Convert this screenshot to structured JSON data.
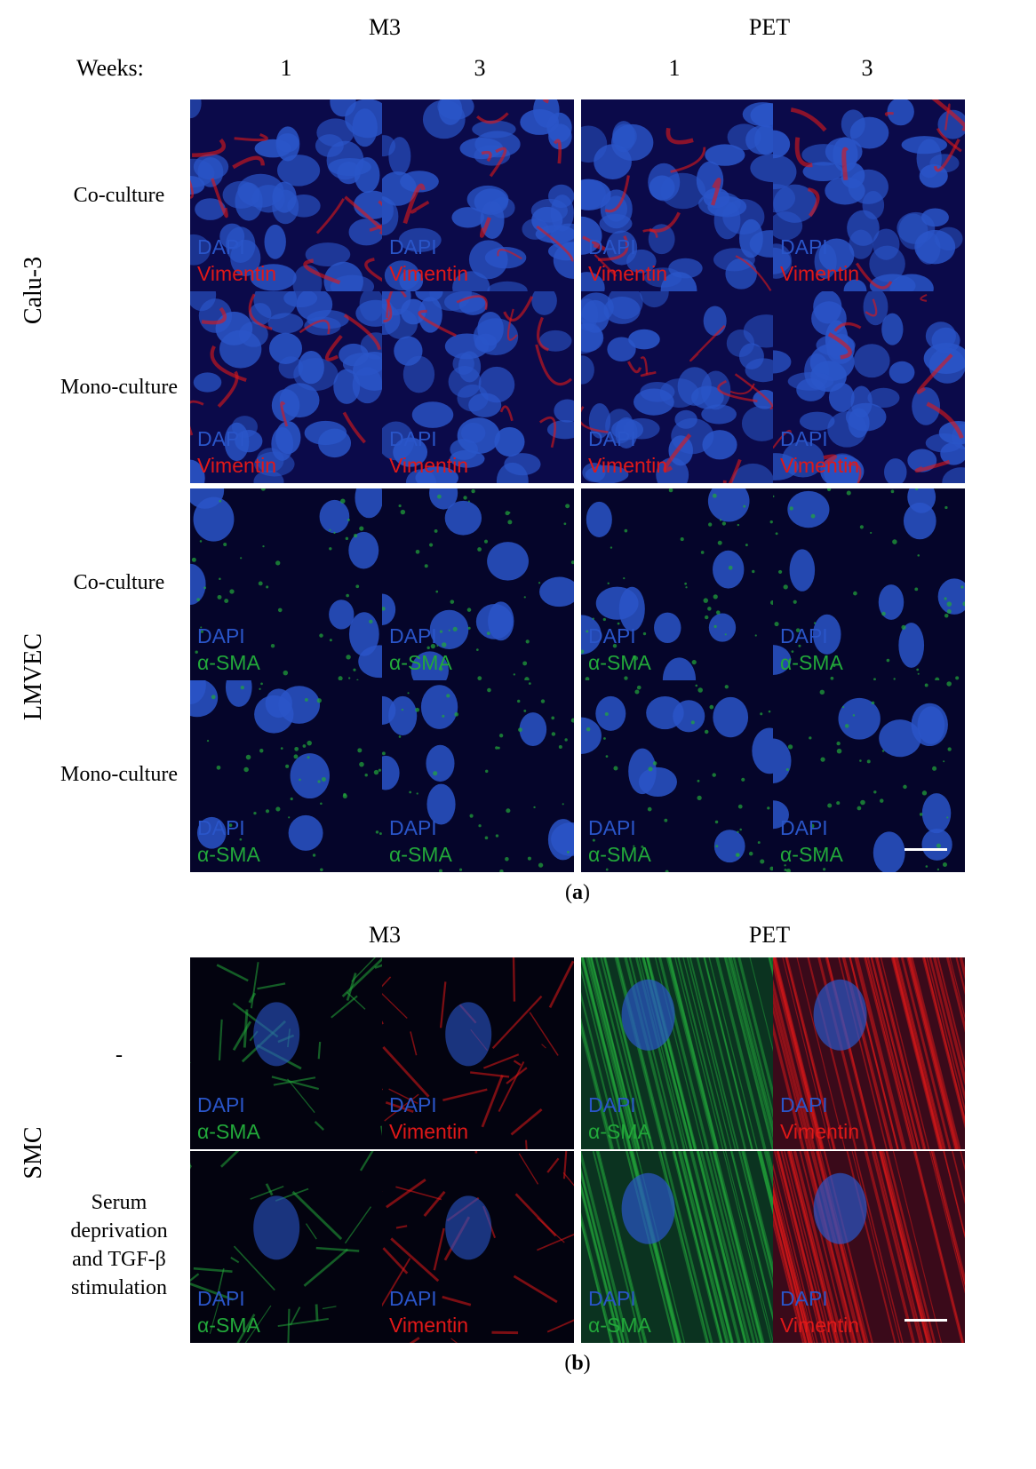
{
  "panel_a": {
    "group_left": "M3",
    "group_right": "PET",
    "weeks_label": "Weeks:",
    "weeks": [
      "1",
      "3",
      "1",
      "3"
    ],
    "cell_lines": [
      "Calu-3",
      "LMVEC"
    ],
    "conditions": [
      "Co-culture",
      "Mono-culture",
      "Co-culture",
      "Mono-culture"
    ],
    "stain_dapi": "DAPI",
    "stain_calu": "Vimentin",
    "stain_lmvec": "α-SMA",
    "letter": "a"
  },
  "panel_b": {
    "group_left": "M3",
    "group_right": "PET",
    "cell_line": "SMC",
    "condition_1": "-",
    "condition_2": [
      "Serum",
      "deprivation",
      "and TGF-β",
      "stimulation"
    ],
    "stain_dapi": "DAPI",
    "stains_cols": [
      "α-SMA",
      "Vimentin",
      "α-SMA",
      "Vimentin"
    ],
    "letter": "b"
  },
  "colors": {
    "dapi_blue": "#2a55c8",
    "vimentin_red": "#e01818",
    "sma_green": "#22a83a",
    "background": "#05032a"
  }
}
